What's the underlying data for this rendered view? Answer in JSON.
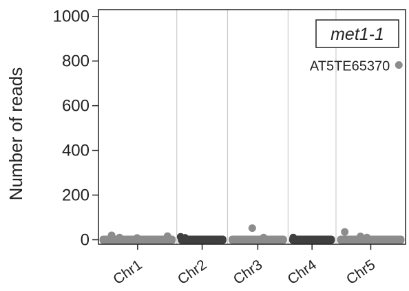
{
  "chart_data": {
    "type": "scatter",
    "title": "",
    "xlabel": "",
    "ylabel": "Number of reads",
    "ylim": [
      -20,
      1030
    ],
    "yticks": [
      0,
      200,
      400,
      600,
      800,
      1000
    ],
    "grid": "vertical chromosome separators only",
    "legend": "top-right boxed label",
    "legend_label": "met1-1",
    "colors": {
      "light_series": "#8c8c8c",
      "dark_series": "#3f3f3f",
      "separator": "#cccccc",
      "axis": "#222222"
    },
    "chromosomes": [
      {
        "label": "Chr1",
        "color": "#8c8c8c"
      },
      {
        "label": "Chr2",
        "color": "#3f3f3f"
      },
      {
        "label": "Chr3",
        "color": "#8c8c8c"
      },
      {
        "label": "Chr4",
        "color": "#3f3f3f"
      },
      {
        "label": "Chr5",
        "color": "#8c8c8c"
      }
    ],
    "chromosome_lengths_mb": [
      30.4,
      19.7,
      23.5,
      18.6,
      27.0
    ],
    "background_reads": {
      "note": "most transposable elements near 0 reads",
      "typical_range": [
        0,
        8
      ]
    },
    "points": [
      {
        "chrom": "Chr1",
        "pos_mb": 5.1,
        "reads": 20
      },
      {
        "chrom": "Chr1",
        "pos_mb": 8.2,
        "reads": 10
      },
      {
        "chrom": "Chr1",
        "pos_mb": 15.0,
        "reads": 8
      },
      {
        "chrom": "Chr1",
        "pos_mb": 26.8,
        "reads": 16
      },
      {
        "chrom": "Chr2",
        "pos_mb": 1.5,
        "reads": 13
      },
      {
        "chrom": "Chr2",
        "pos_mb": 3.2,
        "reads": 9
      },
      {
        "chrom": "Chr3",
        "pos_mb": 9.6,
        "reads": 52
      },
      {
        "chrom": "Chr3",
        "pos_mb": 14.0,
        "reads": 10
      },
      {
        "chrom": "Chr4",
        "pos_mb": 2.0,
        "reads": 10
      },
      {
        "chrom": "Chr5",
        "pos_mb": 3.4,
        "reads": 35
      },
      {
        "chrom": "Chr5",
        "pos_mb": 9.5,
        "reads": 15
      },
      {
        "chrom": "Chr5",
        "pos_mb": 12.0,
        "reads": 10
      },
      {
        "chrom": "Chr5",
        "pos_mb": 24.4,
        "reads": 782,
        "label": "AT5TE65370"
      }
    ]
  }
}
